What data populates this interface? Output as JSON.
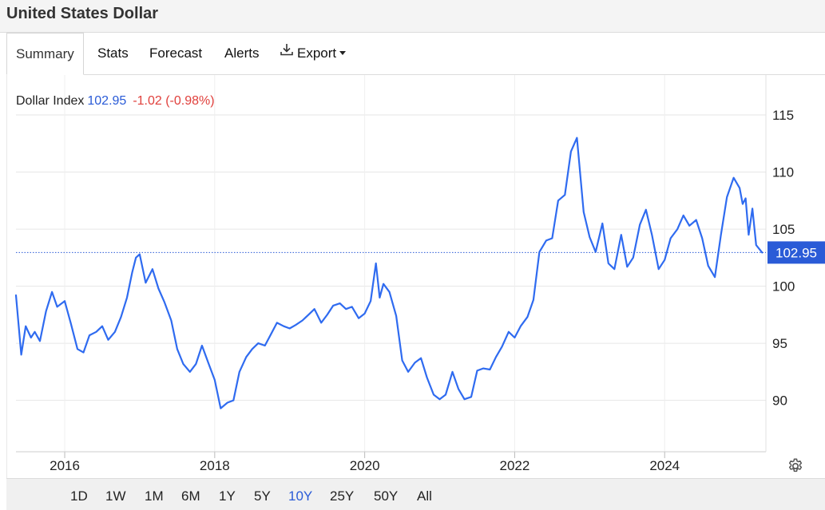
{
  "header": {
    "title": "United States Dollar"
  },
  "tabs": [
    {
      "label": "Summary",
      "active": true
    },
    {
      "label": "Stats"
    },
    {
      "label": "Forecast"
    },
    {
      "label": "Alerts"
    },
    {
      "label": "Export",
      "icon": "download-icon",
      "has_dropdown": true
    }
  ],
  "legend": {
    "name": "Dollar Index",
    "value": "102.95",
    "change": "-1.02 (-0.98%)"
  },
  "ranges": [
    "1D",
    "1W",
    "1M",
    "6M",
    "1Y",
    "5Y",
    "10Y",
    "25Y",
    "50Y",
    "All"
  ],
  "active_range": "10Y",
  "colors": {
    "line": "#2f6bf0",
    "accent": "#2a5bd7",
    "negative": "#e0403c",
    "grid": "#e6e6e6"
  },
  "chart_data": {
    "type": "line",
    "title": "",
    "xlabel": "",
    "ylabel": "",
    "xlim": [
      2015.35,
      2025.35
    ],
    "ylim": [
      85.5,
      118.5
    ],
    "x_ticks": [
      2016,
      2018,
      2020,
      2022,
      2024
    ],
    "y_ticks": [
      90,
      95,
      100,
      105,
      110,
      115
    ],
    "grid": true,
    "last_value": 102.95,
    "last_value_label": "102.95",
    "series": [
      {
        "x": [
          2015.35,
          2015.42,
          2015.48,
          2015.55,
          2015.6,
          2015.67,
          2015.75,
          2015.83,
          2015.9,
          2016.0,
          2016.08,
          2016.17,
          2016.25,
          2016.33,
          2016.42,
          2016.5,
          2016.58,
          2016.67,
          2016.75,
          2016.83,
          2016.9,
          2016.95,
          2017.0,
          2017.08,
          2017.17,
          2017.25,
          2017.33,
          2017.42,
          2017.5,
          2017.58,
          2017.67,
          2017.75,
          2017.83,
          2017.92,
          2018.0,
          2018.08,
          2018.17,
          2018.25,
          2018.33,
          2018.42,
          2018.5,
          2018.58,
          2018.67,
          2018.75,
          2018.83,
          2018.92,
          2019.0,
          2019.08,
          2019.17,
          2019.25,
          2019.33,
          2019.42,
          2019.5,
          2019.58,
          2019.67,
          2019.75,
          2019.83,
          2019.92,
          2020.0,
          2020.08,
          2020.15,
          2020.2,
          2020.25,
          2020.33,
          2020.42,
          2020.5,
          2020.58,
          2020.67,
          2020.75,
          2020.83,
          2020.92,
          2021.0,
          2021.08,
          2021.17,
          2021.25,
          2021.33,
          2021.42,
          2021.5,
          2021.58,
          2021.67,
          2021.75,
          2021.83,
          2021.92,
          2022.0,
          2022.08,
          2022.17,
          2022.25,
          2022.33,
          2022.42,
          2022.5,
          2022.58,
          2022.67,
          2022.75,
          2022.83,
          2022.92,
          2023.0,
          2023.08,
          2023.17,
          2023.25,
          2023.33,
          2023.42,
          2023.5,
          2023.58,
          2023.67,
          2023.75,
          2023.83,
          2023.92,
          2024.0,
          2024.08,
          2024.17,
          2024.25,
          2024.33,
          2024.42,
          2024.5,
          2024.58,
          2024.67,
          2024.75,
          2024.83,
          2024.92,
          2025.0,
          2025.04,
          2025.08,
          2025.12,
          2025.17,
          2025.22,
          2025.3
        ],
        "y": [
          99.2,
          94.0,
          96.5,
          95.5,
          96.0,
          95.2,
          97.8,
          99.5,
          98.2,
          98.7,
          96.8,
          94.5,
          94.2,
          95.7,
          96.0,
          96.5,
          95.3,
          96.0,
          97.3,
          99.0,
          101.2,
          102.5,
          102.8,
          100.3,
          101.5,
          99.8,
          98.6,
          97.0,
          94.5,
          93.2,
          92.5,
          93.2,
          94.8,
          93.2,
          91.8,
          89.3,
          89.8,
          90.0,
          92.5,
          93.8,
          94.5,
          95.0,
          94.8,
          95.8,
          96.8,
          96.5,
          96.3,
          96.6,
          97.0,
          97.5,
          98.0,
          96.8,
          97.5,
          98.3,
          98.5,
          98.0,
          98.2,
          97.2,
          97.6,
          98.7,
          102.0,
          99.0,
          100.2,
          99.5,
          97.4,
          93.5,
          92.5,
          93.3,
          93.7,
          92.0,
          90.5,
          90.1,
          90.5,
          92.5,
          91.0,
          90.1,
          90.3,
          92.6,
          92.8,
          92.7,
          93.8,
          94.7,
          96.0,
          95.5,
          96.5,
          97.3,
          98.8,
          103.0,
          104.0,
          104.2,
          107.5,
          108.0,
          111.8,
          113.0,
          106.5,
          104.3,
          103.0,
          105.5,
          102.0,
          101.5,
          104.5,
          101.7,
          102.5,
          105.4,
          106.7,
          104.5,
          101.5,
          102.3,
          104.2,
          105.0,
          106.2,
          105.3,
          105.8,
          104.2,
          101.8,
          100.8,
          104.5,
          107.8,
          109.5,
          108.6,
          107.2,
          107.7,
          104.5,
          106.8,
          103.6,
          102.95
        ],
        "color": "#2f6bf0"
      }
    ]
  }
}
